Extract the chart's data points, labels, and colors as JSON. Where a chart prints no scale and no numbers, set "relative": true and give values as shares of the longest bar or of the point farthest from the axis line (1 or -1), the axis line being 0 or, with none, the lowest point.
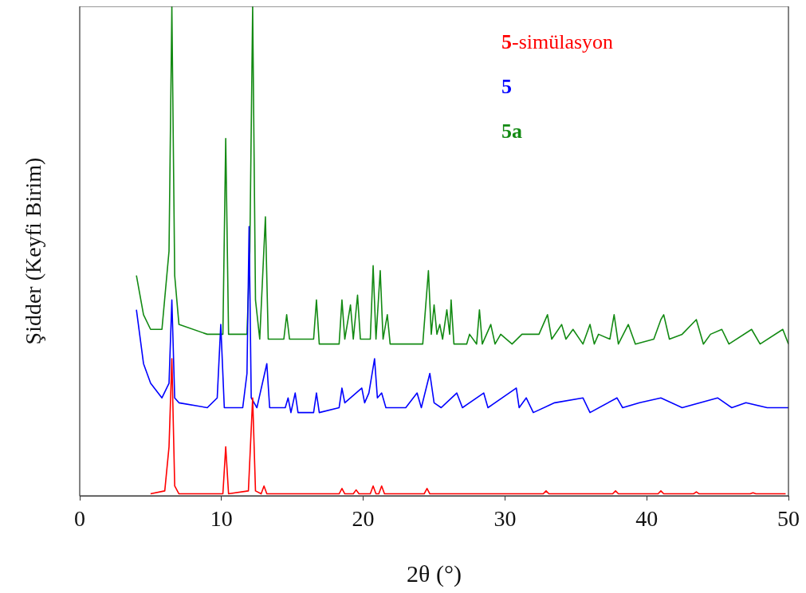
{
  "chart_data": {
    "type": "line",
    "xlabel": "2θ (°)",
    "ylabel": "Şidder (Keyfi Birim)",
    "relative": true,
    "xlim": [
      0,
      50
    ],
    "xticks": [
      0,
      10,
      20,
      30,
      40,
      50
    ],
    "legend": "top right",
    "grid": false,
    "line_style": "solid",
    "series": [
      {
        "name": "5-simülasyon",
        "color": "#ff0000",
        "x": [
          5,
          6.0,
          6.3,
          6.5,
          6.7,
          7,
          10.1,
          10.3,
          10.5,
          11.9,
          12.2,
          12.4,
          12.8,
          13.0,
          13.2,
          18.3,
          18.5,
          18.7,
          19.3,
          19.5,
          19.7,
          20.5,
          20.7,
          20.9,
          21.1,
          21.3,
          21.5,
          24.3,
          24.5,
          24.7,
          32.7,
          32.9,
          33.1,
          37.6,
          37.8,
          38.0,
          40.8,
          41,
          41.2,
          43.3,
          43.5,
          43.7,
          47.3,
          47.5,
          47.7,
          49.8
        ],
        "values": [
          0.004,
          0.01,
          0.1,
          0.28,
          0.02,
          0.004,
          0.004,
          0.1,
          0.004,
          0.01,
          0.2,
          0.01,
          0.004,
          0.02,
          0.004,
          0.004,
          0.015,
          0.004,
          0.004,
          0.012,
          0.004,
          0.004,
          0.02,
          0.004,
          0.004,
          0.02,
          0.004,
          0.004,
          0.015,
          0.004,
          0.004,
          0.01,
          0.004,
          0.004,
          0.01,
          0.004,
          0.004,
          0.01,
          0.004,
          0.004,
          0.008,
          0.004,
          0.004,
          0.006,
          0.004,
          0.004
        ]
      },
      {
        "name": "5",
        "color": "#0000ff",
        "x": [
          4,
          4.5,
          5,
          5.8,
          6.3,
          6.5,
          6.7,
          7,
          9,
          9.7,
          9.95,
          10.2,
          11.5,
          11.8,
          11.95,
          12.1,
          12.5,
          13.2,
          13.4,
          14.5,
          14.7,
          14.9,
          15.2,
          15.4,
          16.5,
          16.7,
          16.9,
          18.3,
          18.5,
          18.7,
          19.9,
          20.1,
          20.4,
          20.8,
          21.0,
          21.3,
          21.6,
          23.0,
          23.8,
          24.1,
          24.7,
          25.0,
          25.5,
          26.6,
          27.0,
          28.5,
          28.8,
          30.8,
          31.0,
          31.5,
          32.0,
          33.5,
          35.5,
          36.0,
          37.9,
          38.3,
          39.5,
          41.0,
          42.5,
          45.0,
          46.0,
          47.0,
          48.5,
          50
        ],
        "values": [
          0.38,
          0.27,
          0.23,
          0.2,
          0.23,
          0.4,
          0.2,
          0.19,
          0.18,
          0.2,
          0.35,
          0.18,
          0.18,
          0.25,
          0.55,
          0.2,
          0.18,
          0.27,
          0.18,
          0.18,
          0.2,
          0.17,
          0.21,
          0.17,
          0.17,
          0.21,
          0.17,
          0.18,
          0.22,
          0.19,
          0.22,
          0.19,
          0.21,
          0.28,
          0.2,
          0.21,
          0.18,
          0.18,
          0.21,
          0.18,
          0.25,
          0.19,
          0.18,
          0.21,
          0.18,
          0.21,
          0.18,
          0.22,
          0.18,
          0.2,
          0.17,
          0.19,
          0.2,
          0.17,
          0.2,
          0.18,
          0.19,
          0.2,
          0.18,
          0.2,
          0.18,
          0.19,
          0.18,
          0.18
        ]
      },
      {
        "name": "5a",
        "color": "#138a13",
        "x": [
          4,
          4.5,
          5,
          5.8,
          6.3,
          6.5,
          6.7,
          7,
          9,
          10.1,
          10.3,
          10.5,
          11.8,
          12.0,
          12.2,
          12.4,
          12.7,
          13.1,
          13.3,
          14.4,
          14.6,
          14.8,
          16.5,
          16.7,
          16.9,
          18.3,
          18.5,
          18.7,
          19.1,
          19.3,
          19.6,
          19.8,
          20.5,
          20.7,
          20.9,
          21.2,
          21.4,
          21.7,
          21.9,
          24.2,
          24.6,
          24.8,
          25.0,
          25.2,
          25.4,
          25.6,
          25.9,
          26.1,
          26.2,
          26.4,
          27.3,
          27.5,
          28.0,
          28.2,
          28.4,
          29.0,
          29.3,
          29.7,
          30.5,
          31.2,
          32.4,
          33.0,
          33.3,
          34.0,
          34.3,
          34.8,
          35.5,
          36.0,
          36.3,
          36.6,
          37.4,
          37.7,
          38.0,
          38.7,
          39.2,
          40.5,
          41.0,
          41.2,
          41.6,
          42.5,
          43.5,
          44.0,
          44.5,
          45.3,
          45.8,
          47.4,
          48.0,
          49.6,
          50
        ],
        "values": [
          0.45,
          0.37,
          0.34,
          0.34,
          0.5,
          1,
          0.45,
          0.35,
          0.33,
          0.33,
          0.73,
          0.33,
          0.33,
          0.5,
          1,
          0.4,
          0.32,
          0.57,
          0.32,
          0.32,
          0.37,
          0.32,
          0.32,
          0.4,
          0.31,
          0.31,
          0.4,
          0.32,
          0.39,
          0.32,
          0.41,
          0.32,
          0.32,
          0.47,
          0.32,
          0.46,
          0.32,
          0.37,
          0.31,
          0.31,
          0.46,
          0.33,
          0.39,
          0.33,
          0.35,
          0.32,
          0.38,
          0.33,
          0.4,
          0.31,
          0.31,
          0.33,
          0.31,
          0.38,
          0.31,
          0.35,
          0.31,
          0.33,
          0.31,
          0.33,
          0.33,
          0.37,
          0.32,
          0.35,
          0.32,
          0.34,
          0.31,
          0.35,
          0.31,
          0.33,
          0.32,
          0.37,
          0.31,
          0.35,
          0.31,
          0.32,
          0.36,
          0.37,
          0.32,
          0.33,
          0.36,
          0.31,
          0.33,
          0.34,
          0.31,
          0.34,
          0.31,
          0.34,
          0.31
        ]
      }
    ]
  }
}
